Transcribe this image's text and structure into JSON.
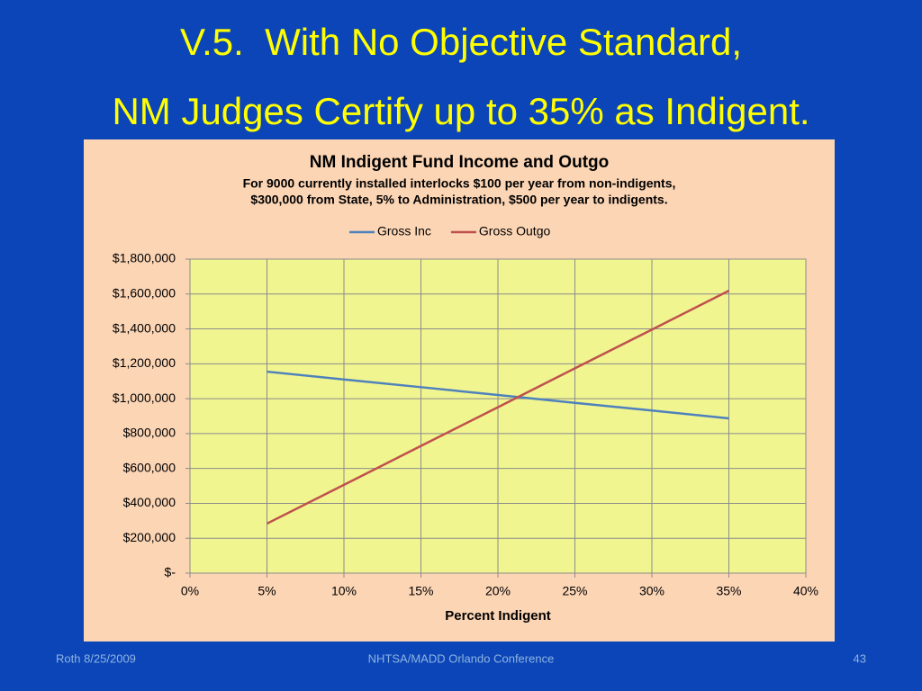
{
  "slide": {
    "title": [
      "V.5.  With No Objective Standard,",
      "NM Judges Certify up to 35% as Indigent."
    ],
    "footer_left": "Roth 8/25/2009",
    "footer_center": "NHTSA/MADD Orlando Conference",
    "page_number": "43"
  },
  "chart_data": {
    "type": "line",
    "title": "NM Indigent Fund Income and Outgo",
    "subtitle": [
      "For 9000 currently installed interlocks $100 per year from non-indigents,",
      "$300,000 from State, 5% to Administration, $500 per year to indigents."
    ],
    "x_label": "Percent Indigent",
    "x": [
      5,
      10,
      15,
      20,
      25,
      30,
      35
    ],
    "series": [
      {
        "name": "Gross Inc",
        "color": "#4f81bd",
        "values": [
          1155000,
          1110000,
          1066000,
          1021000,
          976000,
          932000,
          887000
        ]
      },
      {
        "name": "Gross Outgo",
        "color": "#c0504d",
        "values": [
          284000,
          506000,
          729000,
          951000,
          1174000,
          1396000,
          1619000
        ]
      }
    ],
    "xlim": [
      0,
      40
    ],
    "xticks": [
      {
        "value": 0,
        "label": "0%"
      },
      {
        "value": 5,
        "label": "5%"
      },
      {
        "value": 10,
        "label": "10%"
      },
      {
        "value": 15,
        "label": "15%"
      },
      {
        "value": 20,
        "label": "20%"
      },
      {
        "value": 25,
        "label": "25%"
      },
      {
        "value": 30,
        "label": "30%"
      },
      {
        "value": 35,
        "label": "35%"
      },
      {
        "value": 40,
        "label": "40%"
      }
    ],
    "ylim": [
      0,
      1800000
    ],
    "yticks": [
      {
        "value": 0,
        "label": "$-"
      },
      {
        "value": 200000,
        "label": "$200,000"
      },
      {
        "value": 400000,
        "label": "$400,000"
      },
      {
        "value": 600000,
        "label": "$600,000"
      },
      {
        "value": 800000,
        "label": "$800,000"
      },
      {
        "value": 1000000,
        "label": "$1,000,000"
      },
      {
        "value": 1200000,
        "label": "$1,200,000"
      },
      {
        "value": 1400000,
        "label": "$1,400,000"
      },
      {
        "value": 1600000,
        "label": "$1,600,000"
      },
      {
        "value": 1800000,
        "label": "$1,800,000"
      }
    ],
    "grid": true,
    "legend": "top"
  }
}
